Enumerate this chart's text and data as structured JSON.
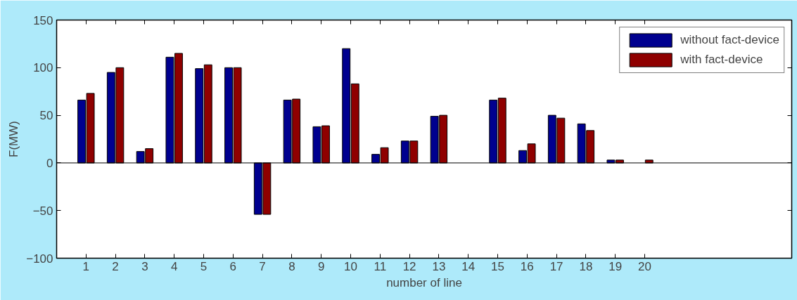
{
  "chart_data": {
    "type": "bar",
    "xlabel": "number of line",
    "ylabel": "F(MW)",
    "x": [
      1,
      2,
      3,
      4,
      5,
      6,
      7,
      8,
      9,
      10,
      11,
      12,
      13,
      14,
      15,
      16,
      17,
      18,
      19,
      20
    ],
    "series": [
      {
        "name": "without fact-device",
        "color": "#00008f",
        "values": [
          66,
          95,
          12,
          111,
          99,
          100,
          -54,
          66,
          38,
          120,
          9,
          23,
          49,
          null,
          66,
          13,
          50,
          41,
          3,
          null
        ]
      },
      {
        "name": "with fact-device",
        "color": "#8f0000",
        "values": [
          73,
          100,
          15,
          115,
          103,
          100,
          -54,
          67,
          39,
          83,
          16,
          23,
          50,
          null,
          68,
          20,
          47,
          34,
          3,
          3
        ]
      }
    ],
    "xlim": [
      0,
      25
    ],
    "xticks": [
      1,
      2,
      3,
      4,
      5,
      6,
      7,
      8,
      9,
      10,
      11,
      12,
      13,
      14,
      15,
      16,
      17,
      18,
      19,
      20
    ],
    "ylim": [
      -100,
      150
    ],
    "yticks": [
      -100,
      -50,
      0,
      50,
      100,
      150
    ],
    "ref_lines": [
      {
        "axis": "y",
        "value": 0,
        "color": "#000000"
      }
    ],
    "grid": false,
    "legend": "top right"
  }
}
